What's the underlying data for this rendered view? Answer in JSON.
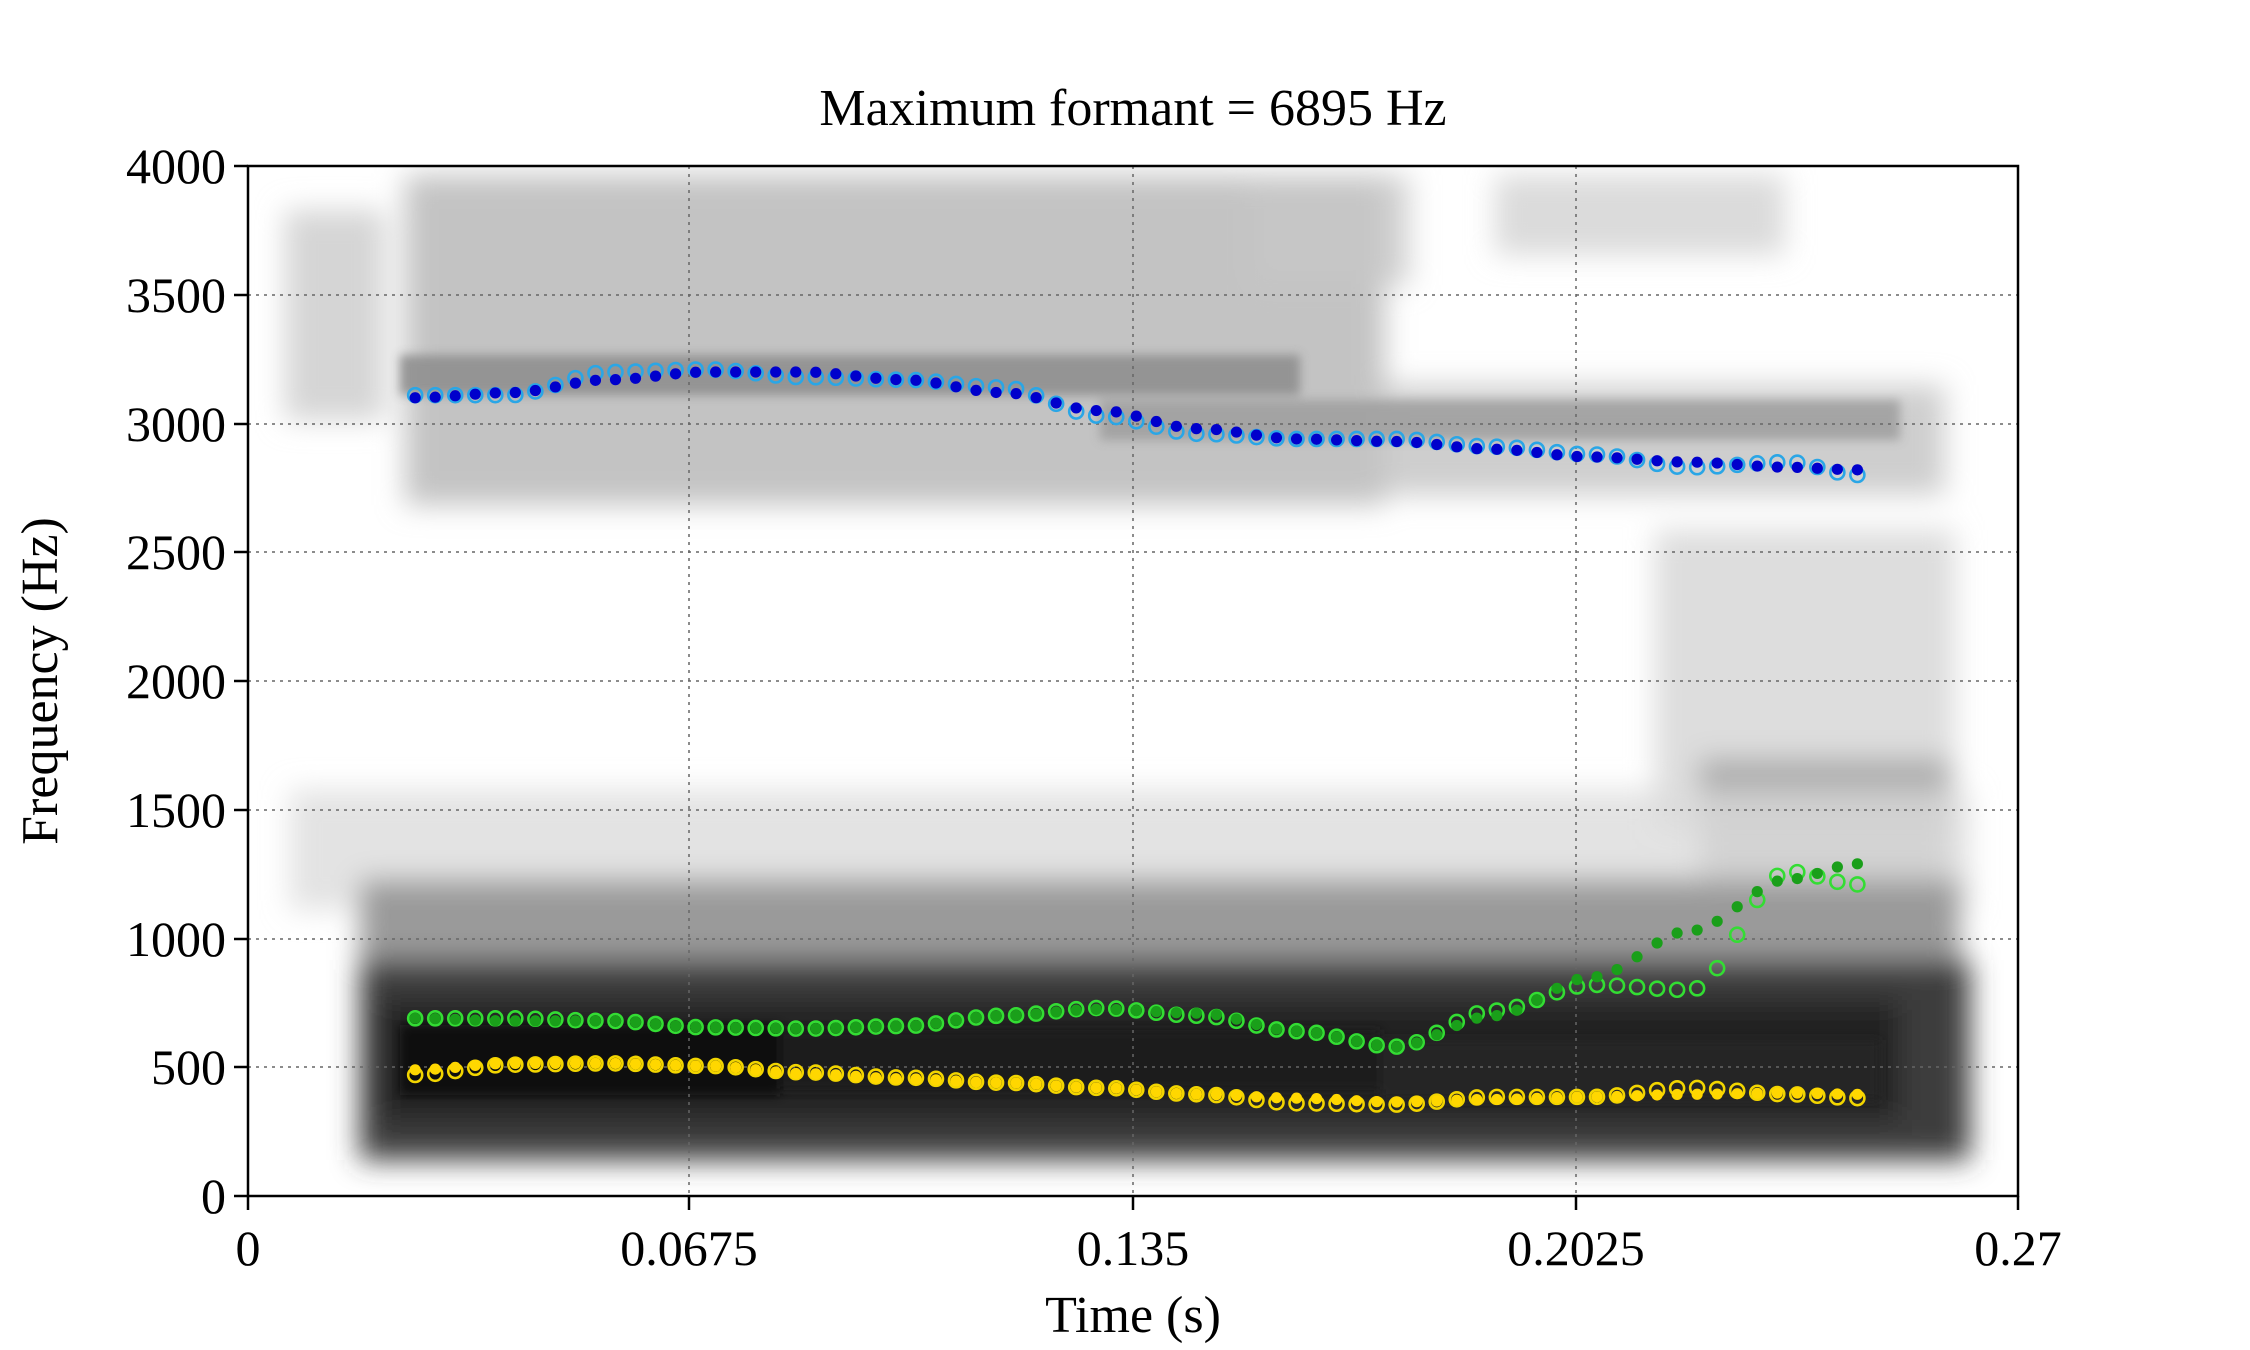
{
  "chart_data": {
    "type": "scatter",
    "title": "Maximum formant = 6895 Hz",
    "xlabel": "Time (s)",
    "ylabel": "Frequency (Hz)",
    "xlim": [
      0,
      0.27
    ],
    "ylim": [
      0,
      4000
    ],
    "x_ticks": [
      "0",
      "0.0675",
      "0.135",
      "0.2025",
      "0.27"
    ],
    "x_tick_values": [
      0,
      0.0675,
      0.135,
      0.2025,
      0.27
    ],
    "y_ticks": [
      "0",
      "500",
      "1000",
      "1500",
      "2000",
      "2500",
      "3000",
      "3500",
      "4000"
    ],
    "y_tick_values": [
      0,
      500,
      1000,
      1500,
      2000,
      2500,
      3000,
      3500,
      4000
    ],
    "grid": true,
    "background": "spectrogram",
    "colors": {
      "f1_tracked": "#ffd700",
      "f1_measured": "#f2d500",
      "f2_tracked": "#1a9f1a",
      "f2_measured": "#33dd33",
      "f3_tracked": "#0000cc",
      "f3_measured": "#2aa6e6"
    },
    "formant_tracks": [
      {
        "name": "F1",
        "x": [
          0.0255,
          0.04,
          0.055,
          0.07,
          0.085,
          0.1,
          0.115,
          0.13,
          0.145,
          0.16,
          0.175,
          0.19,
          0.205,
          0.22,
          0.235,
          0.2455
        ],
        "tracked": [
          490,
          515,
          515,
          505,
          475,
          455,
          440,
          420,
          395,
          380,
          365,
          375,
          385,
          395,
          400,
          395
        ],
        "measured": [
          470,
          510,
          515,
          505,
          480,
          460,
          440,
          420,
          395,
          360,
          355,
          385,
          385,
          420,
          395,
          380
        ]
      },
      {
        "name": "F2",
        "x": [
          0.0255,
          0.04,
          0.055,
          0.07,
          0.085,
          0.1,
          0.115,
          0.13,
          0.145,
          0.16,
          0.175,
          0.19,
          0.205,
          0.22,
          0.235,
          0.2455
        ],
        "tracked": [
          690,
          680,
          680,
          655,
          650,
          660,
          700,
          725,
          710,
          640,
          580,
          700,
          850,
          1030,
          1230,
          1290
        ],
        "measured": [
          690,
          690,
          680,
          655,
          650,
          660,
          700,
          730,
          700,
          640,
          580,
          720,
          820,
          800,
          1260,
          1210
        ]
      },
      {
        "name": "F3",
        "x": [
          0.0255,
          0.04,
          0.055,
          0.07,
          0.085,
          0.1,
          0.115,
          0.13,
          0.145,
          0.16,
          0.175,
          0.19,
          0.205,
          0.22,
          0.235,
          0.2455
        ],
        "tracked": [
          3100,
          3120,
          3170,
          3200,
          3200,
          3170,
          3120,
          3050,
          2980,
          2940,
          2930,
          2900,
          2870,
          2850,
          2830,
          2820
        ],
        "measured": [
          3110,
          3110,
          3200,
          3210,
          3180,
          3170,
          3140,
          3030,
          2960,
          2940,
          2940,
          2910,
          2880,
          2830,
          2850,
          2800
        ]
      }
    ]
  }
}
